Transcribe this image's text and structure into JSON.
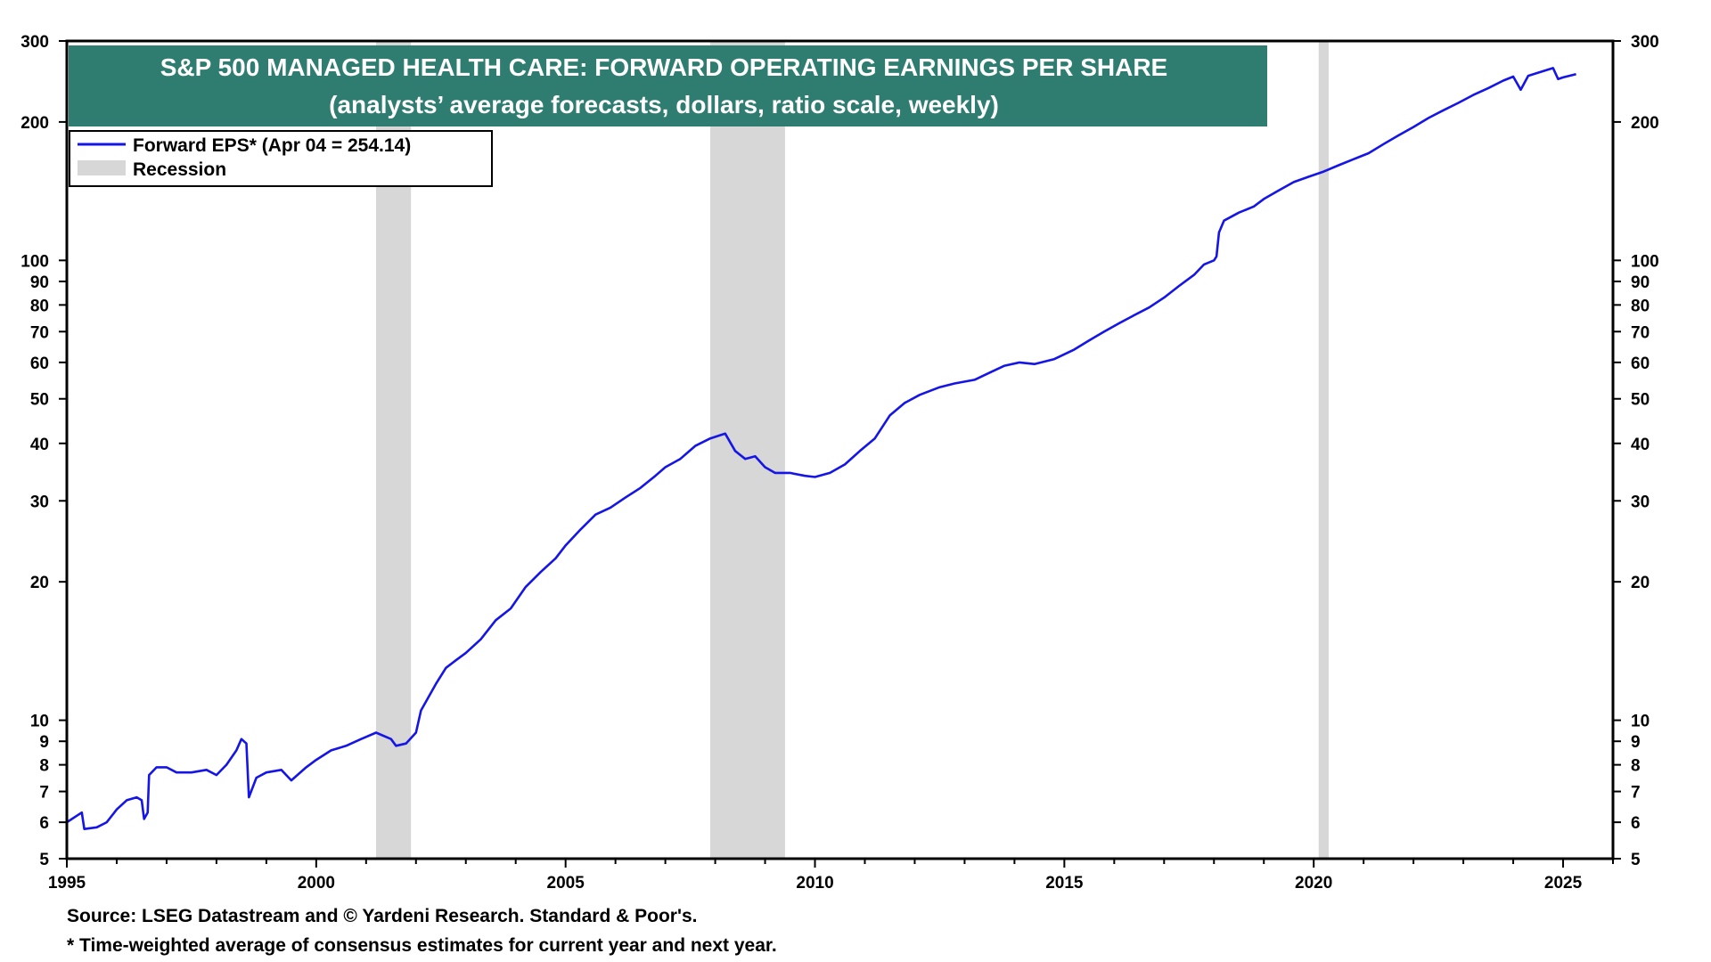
{
  "colors": {
    "title_bg": "#2e7d70",
    "title_text": "#ffffff",
    "series_line": "#1515e8",
    "recession_shade": "#d7d7d7",
    "axis": "#000000"
  },
  "footer": {
    "source": "Source: LSEG Datastream and © Yardeni Research. Standard & Poor's.",
    "note": "* Time-weighted average of consensus estimates for current year and next year."
  },
  "chart_data": {
    "type": "line",
    "title": "S&P 500 MANAGED HEALTH CARE: FORWARD OPERATING EARNINGS PER SHARE",
    "subtitle": "(analysts’ average forecasts, dollars, ratio scale, weekly)",
    "y_scale": "log",
    "xlim": [
      1995,
      2026
    ],
    "ylim": [
      5,
      300
    ],
    "x_ticks": [
      1995,
      2000,
      2005,
      2010,
      2015,
      2020,
      2025
    ],
    "x_tick_labels": [
      "1995",
      "2000",
      "2005",
      "2010",
      "2015",
      "2020",
      "2025"
    ],
    "y_ticks": [
      5,
      6,
      7,
      8,
      9,
      10,
      20,
      30,
      40,
      50,
      60,
      70,
      80,
      90,
      100,
      200,
      300
    ],
    "y_tick_labels": [
      "5",
      "6",
      "7",
      "8",
      "9",
      "10",
      "20",
      "30",
      "40",
      "50",
      "60",
      "70",
      "80",
      "90",
      "100",
      "200",
      "300"
    ],
    "y_axis_sides": [
      "left",
      "right"
    ],
    "grid": false,
    "legend": {
      "placement": "top-left",
      "entries": [
        {
          "label": "Forward EPS* (Apr 04 = 254.14)",
          "kind": "line"
        },
        {
          "label": "Recession",
          "kind": "shade"
        }
      ]
    },
    "recessions": [
      {
        "start": 2001.2,
        "end": 2001.9
      },
      {
        "start": 2007.9,
        "end": 2009.4
      },
      {
        "start": 2020.1,
        "end": 2020.3
      }
    ],
    "series": [
      {
        "name": "Forward EPS* (Apr 04 = 254.14)",
        "points": [
          [
            1995.0,
            6.0
          ],
          [
            1995.2,
            6.2
          ],
          [
            1995.3,
            6.3
          ],
          [
            1995.35,
            5.8
          ],
          [
            1995.6,
            5.85
          ],
          [
            1995.8,
            6.0
          ],
          [
            1996.0,
            6.4
          ],
          [
            1996.2,
            6.7
          ],
          [
            1996.4,
            6.8
          ],
          [
            1996.5,
            6.7
          ],
          [
            1996.55,
            6.1
          ],
          [
            1996.62,
            6.3
          ],
          [
            1996.65,
            7.6
          ],
          [
            1996.8,
            7.9
          ],
          [
            1997.0,
            7.9
          ],
          [
            1997.2,
            7.7
          ],
          [
            1997.5,
            7.7
          ],
          [
            1997.8,
            7.8
          ],
          [
            1998.0,
            7.6
          ],
          [
            1998.2,
            8.0
          ],
          [
            1998.4,
            8.6
          ],
          [
            1998.5,
            9.1
          ],
          [
            1998.6,
            8.9
          ],
          [
            1998.65,
            6.8
          ],
          [
            1998.8,
            7.5
          ],
          [
            1999.0,
            7.7
          ],
          [
            1999.3,
            7.8
          ],
          [
            1999.5,
            7.4
          ],
          [
            1999.8,
            7.9
          ],
          [
            2000.0,
            8.2
          ],
          [
            2000.3,
            8.6
          ],
          [
            2000.6,
            8.8
          ],
          [
            2000.9,
            9.1
          ],
          [
            2001.0,
            9.2
          ],
          [
            2001.2,
            9.4
          ],
          [
            2001.5,
            9.1
          ],
          [
            2001.6,
            8.8
          ],
          [
            2001.8,
            8.9
          ],
          [
            2002.0,
            9.4
          ],
          [
            2002.1,
            10.5
          ],
          [
            2002.4,
            12.0
          ],
          [
            2002.6,
            13.0
          ],
          [
            2002.8,
            13.5
          ],
          [
            2003.0,
            14.0
          ],
          [
            2003.3,
            15.0
          ],
          [
            2003.6,
            16.5
          ],
          [
            2003.9,
            17.5
          ],
          [
            2004.2,
            19.5
          ],
          [
            2004.5,
            21.0
          ],
          [
            2004.8,
            22.5
          ],
          [
            2005.0,
            24.0
          ],
          [
            2005.3,
            26.0
          ],
          [
            2005.6,
            28.0
          ],
          [
            2005.9,
            29.0
          ],
          [
            2006.2,
            30.5
          ],
          [
            2006.5,
            32.0
          ],
          [
            2006.8,
            34.0
          ],
          [
            2007.0,
            35.5
          ],
          [
            2007.3,
            37.0
          ],
          [
            2007.6,
            39.5
          ],
          [
            2007.9,
            41.0
          ],
          [
            2008.2,
            42.0
          ],
          [
            2008.4,
            38.5
          ],
          [
            2008.6,
            37.0
          ],
          [
            2008.8,
            37.5
          ],
          [
            2009.0,
            35.5
          ],
          [
            2009.2,
            34.5
          ],
          [
            2009.5,
            34.5
          ],
          [
            2009.8,
            34.0
          ],
          [
            2010.0,
            33.8
          ],
          [
            2010.3,
            34.5
          ],
          [
            2010.6,
            36.0
          ],
          [
            2010.9,
            38.5
          ],
          [
            2011.2,
            41.0
          ],
          [
            2011.5,
            46.0
          ],
          [
            2011.8,
            49.0
          ],
          [
            2012.1,
            51.0
          ],
          [
            2012.5,
            53.0
          ],
          [
            2012.8,
            54.0
          ],
          [
            2013.2,
            55.0
          ],
          [
            2013.5,
            57.0
          ],
          [
            2013.8,
            59.0
          ],
          [
            2014.1,
            60.0
          ],
          [
            2014.4,
            59.5
          ],
          [
            2014.8,
            61.0
          ],
          [
            2015.2,
            64.0
          ],
          [
            2015.5,
            67.0
          ],
          [
            2015.8,
            70.0
          ],
          [
            2016.1,
            73.0
          ],
          [
            2016.4,
            76.0
          ],
          [
            2016.7,
            79.0
          ],
          [
            2017.0,
            83.0
          ],
          [
            2017.3,
            88.0
          ],
          [
            2017.6,
            93.0
          ],
          [
            2017.8,
            98.0
          ],
          [
            2018.0,
            100.0
          ],
          [
            2018.05,
            102.0
          ],
          [
            2018.1,
            115.0
          ],
          [
            2018.2,
            122.0
          ],
          [
            2018.5,
            127.0
          ],
          [
            2018.8,
            131.0
          ],
          [
            2019.0,
            136.0
          ],
          [
            2019.3,
            142.0
          ],
          [
            2019.6,
            148.0
          ],
          [
            2019.9,
            152.0
          ],
          [
            2020.2,
            156.0
          ],
          [
            2020.5,
            161.0
          ],
          [
            2020.8,
            166.0
          ],
          [
            2021.1,
            171.0
          ],
          [
            2021.4,
            179.0
          ],
          [
            2021.7,
            187.0
          ],
          [
            2022.0,
            195.0
          ],
          [
            2022.3,
            204.0
          ],
          [
            2022.6,
            212.0
          ],
          [
            2022.9,
            220.0
          ],
          [
            2023.2,
            229.0
          ],
          [
            2023.5,
            237.0
          ],
          [
            2023.8,
            246.0
          ],
          [
            2024.0,
            251.0
          ],
          [
            2024.15,
            235.0
          ],
          [
            2024.3,
            252.0
          ],
          [
            2024.5,
            256.0
          ],
          [
            2024.8,
            262.0
          ],
          [
            2024.9,
            248.0
          ],
          [
            2025.0,
            250.0
          ],
          [
            2025.26,
            254.14
          ]
        ]
      }
    ]
  }
}
